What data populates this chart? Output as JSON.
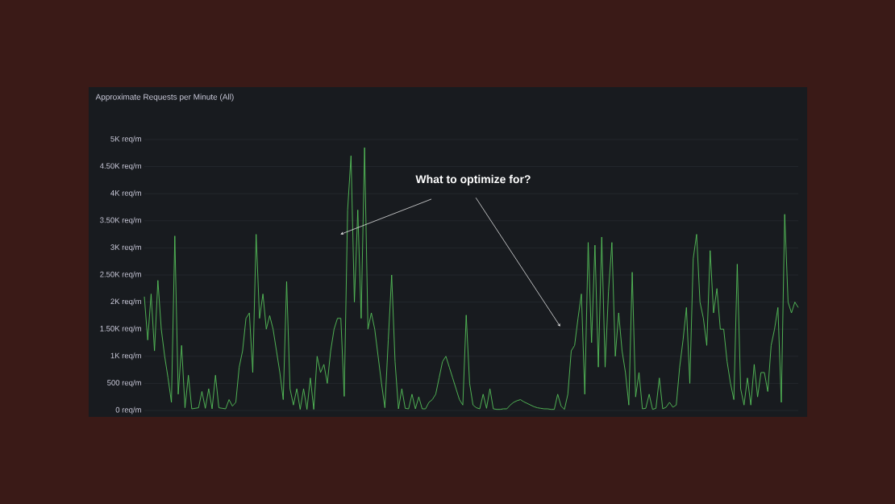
{
  "chart_data": {
    "type": "line",
    "title": "Approximate Requests per Minute (All)",
    "categories": [
      null,
      null,
      null,
      null,
      null,
      null,
      null,
      null,
      null,
      null,
      null,
      null,
      null,
      null,
      null,
      null,
      null,
      null,
      null,
      null,
      null,
      null,
      null,
      null,
      null,
      null,
      null,
      null,
      null,
      null,
      null,
      null,
      null,
      null,
      null,
      null,
      null,
      null,
      null,
      null,
      null,
      null,
      null,
      null,
      null,
      null,
      null,
      null,
      null,
      null,
      null,
      null,
      null,
      null,
      null,
      null,
      null,
      null,
      null,
      null,
      null,
      null,
      null,
      null,
      null,
      null,
      null,
      null,
      null,
      null,
      null,
      null,
      null,
      null,
      null,
      null,
      null,
      null,
      null,
      null,
      null,
      null,
      null,
      null,
      null,
      null,
      null,
      null,
      null,
      null,
      null,
      null,
      null,
      null,
      null,
      null,
      null,
      null,
      null,
      null,
      null,
      null,
      null,
      null,
      null,
      null,
      null,
      null,
      null,
      null,
      null,
      null,
      null,
      null,
      null,
      null,
      null,
      null,
      null,
      null,
      null,
      null,
      null,
      null,
      null,
      null,
      null,
      null,
      null,
      null,
      null,
      null,
      null,
      null,
      null,
      null,
      null,
      null,
      null,
      null,
      null,
      null,
      null,
      null,
      null,
      null,
      null,
      null,
      null,
      null,
      null,
      null,
      null,
      null,
      null,
      null,
      null,
      null,
      null,
      null,
      null,
      null,
      null,
      null,
      null,
      null,
      null,
      null,
      null,
      null,
      null,
      null,
      null,
      null,
      null,
      null,
      null,
      null,
      null,
      null,
      null,
      null,
      null,
      null,
      null,
      null,
      null,
      null,
      null,
      null,
      null,
      null,
      null,
      null
    ],
    "values": [
      2100,
      1300,
      2150,
      1100,
      2400,
      1500,
      1000,
      600,
      150,
      3220,
      300,
      1200,
      50,
      650,
      30,
      40,
      50,
      350,
      40,
      400,
      30,
      650,
      50,
      40,
      30,
      200,
      80,
      150,
      800,
      1100,
      1700,
      1800,
      700,
      3250,
      1700,
      2150,
      1500,
      1750,
      1500,
      1100,
      700,
      200,
      2380,
      400,
      100,
      400,
      20,
      400,
      20,
      600,
      20,
      1000,
      700,
      850,
      500,
      1100,
      1500,
      1700,
      1700,
      260,
      3700,
      4700,
      2000,
      3700,
      1700,
      4850,
      1500,
      1800,
      1500,
      1000,
      500,
      50,
      1300,
      2500,
      900,
      30,
      400,
      40,
      30,
      300,
      30,
      250,
      30,
      30,
      150,
      200,
      300,
      600,
      900,
      1000,
      800,
      600,
      400,
      200,
      100,
      1760,
      500,
      100,
      50,
      30,
      300,
      40,
      400,
      30,
      20,
      20,
      30,
      30,
      100,
      150,
      180,
      200,
      160,
      130,
      100,
      70,
      50,
      40,
      30,
      30,
      20,
      20,
      300,
      80,
      20,
      300,
      1100,
      1200,
      1700,
      2150,
      300,
      3100,
      1250,
      3050,
      800,
      3200,
      800,
      2200,
      3100,
      1000,
      1800,
      1100,
      700,
      100,
      2550,
      250,
      700,
      30,
      40,
      300,
      20,
      40,
      600,
      30,
      60,
      150,
      60,
      100,
      800,
      1300,
      1900,
      500,
      2800,
      3250,
      2000,
      1700,
      1200,
      2950,
      1800,
      2250,
      1500,
      1500,
      900,
      500,
      200,
      2700,
      400,
      100,
      600,
      100,
      850,
      250,
      700,
      700,
      350,
      1200,
      1500,
      1900,
      150,
      3620,
      2000,
      1800,
      2000,
      1900
    ],
    "color": "#56c25a",
    "ylim": [
      0,
      5000
    ],
    "yticks": [
      {
        "value": 0,
        "label": "0 req/m"
      },
      {
        "value": 500,
        "label": "500 req/m"
      },
      {
        "value": 1000,
        "label": "1K req/m"
      },
      {
        "value": 1500,
        "label": "1.50K req/m"
      },
      {
        "value": 2000,
        "label": "2K req/m"
      },
      {
        "value": 2500,
        "label": "2.50K req/m"
      },
      {
        "value": 3000,
        "label": "3K req/m"
      },
      {
        "value": 3500,
        "label": "3.50K req/m"
      },
      {
        "value": 4000,
        "label": "4K req/m"
      },
      {
        "value": 4500,
        "label": "4.50K req/m"
      },
      {
        "value": 5000,
        "label": "5K req/m"
      }
    ],
    "grid": "y",
    "annotations": [
      "What to optimize for?"
    ]
  }
}
